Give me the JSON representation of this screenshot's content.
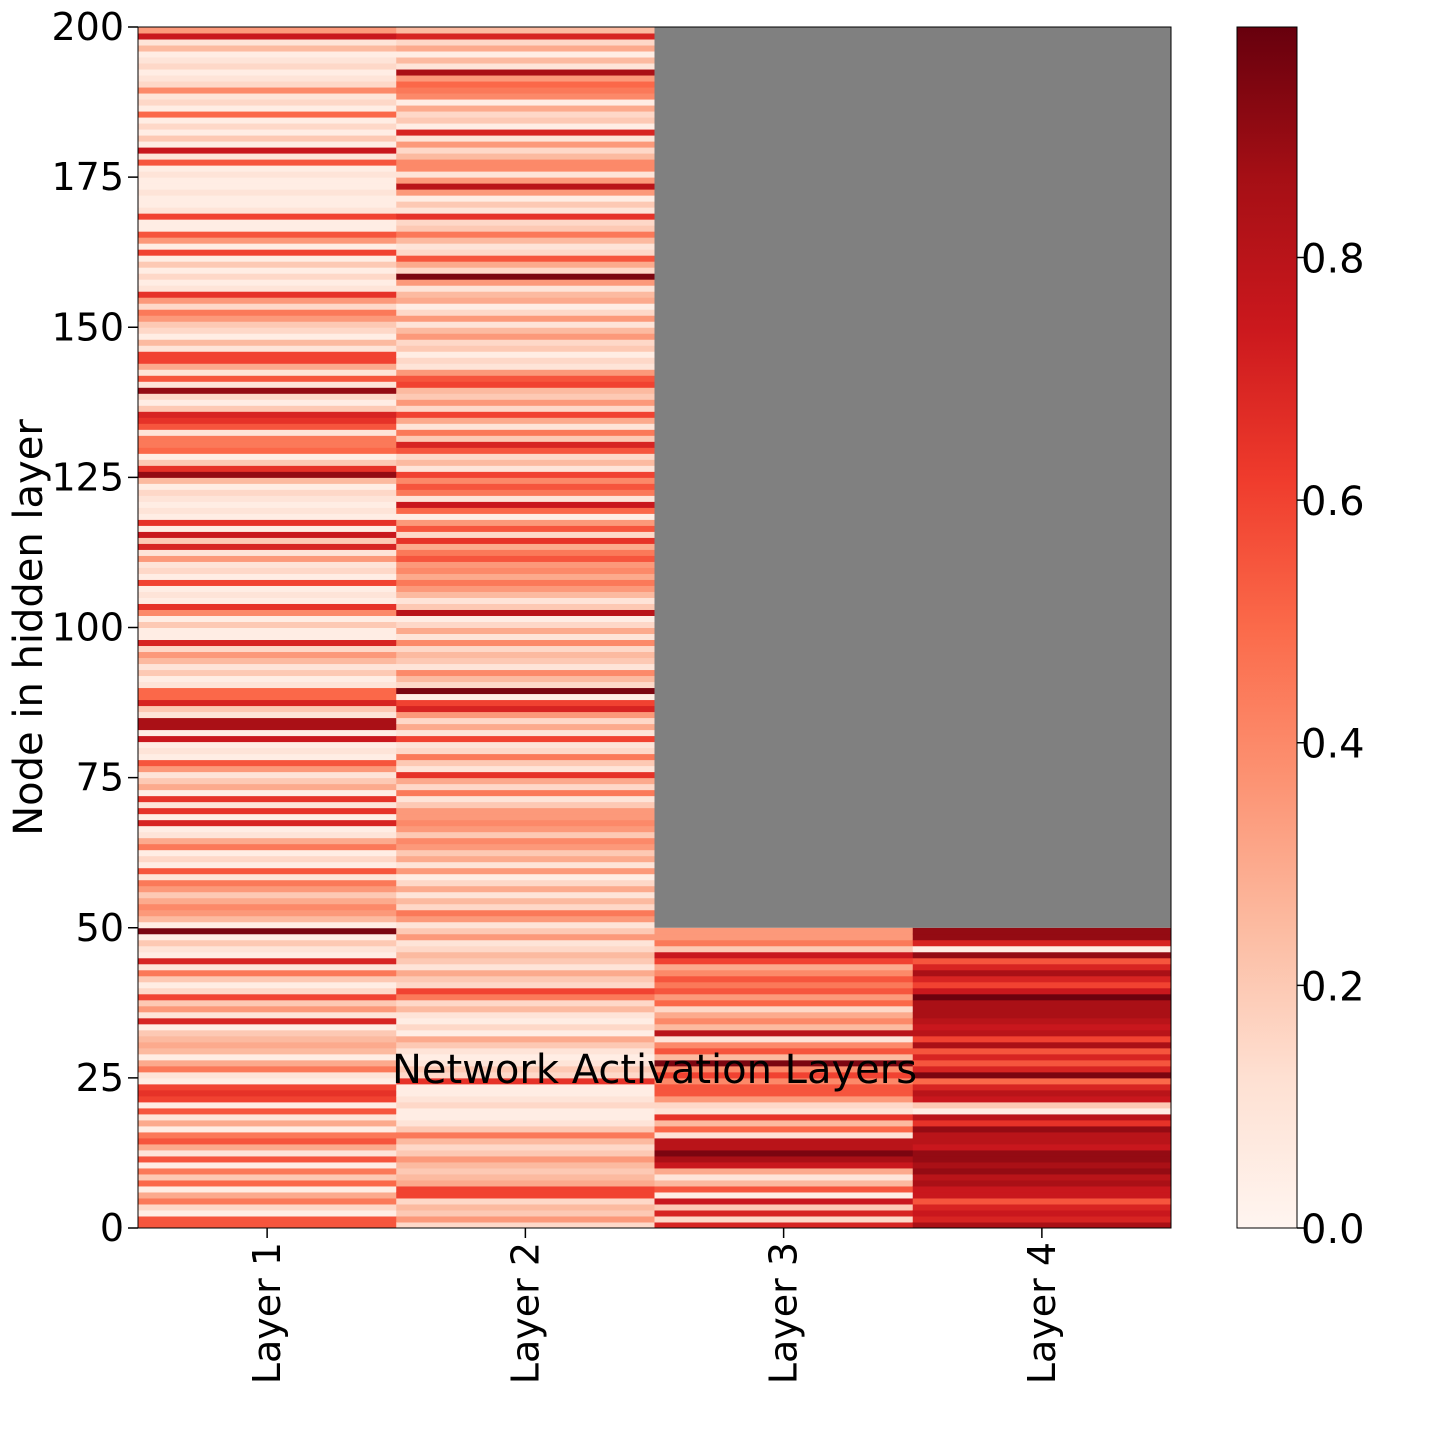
{
  "chart_data": {
    "type": "heatmap",
    "title": "",
    "xlabel": "Network Activation Layers",
    "ylabel": "Node in hidden layer",
    "x_categories": [
      "Layer 1",
      "Layer 2",
      "Layer 3",
      "Layer 4"
    ],
    "ylim": [
      0,
      200
    ],
    "y_ticks": [
      0,
      25,
      50,
      75,
      100,
      125,
      150,
      175,
      200
    ],
    "colormap": "Reds",
    "missing_color": "#808080",
    "colorbar": {
      "range": [
        0.0,
        0.99
      ],
      "ticks": [
        0.0,
        0.2,
        0.4,
        0.6,
        0.8
      ],
      "tick_labels": [
        "0.0",
        "0.2",
        "0.4",
        "0.6",
        "0.8"
      ],
      "placement": "right"
    },
    "grid": false,
    "layers": [
      {
        "name": "Layer 1",
        "nodes": 200,
        "values": [
          0.55,
          0.55,
          0.05,
          0.15,
          0.45,
          0.3,
          0.05,
          0.5,
          0.2,
          0.45,
          0.05,
          0.55,
          0.1,
          0.3,
          0.55,
          0.45,
          0.05,
          0.3,
          0.1,
          0.55,
          0.05,
          0.6,
          0.65,
          0.6,
          0.05,
          0.1,
          0.45,
          0.3,
          0.05,
          0.25,
          0.3,
          0.25,
          0.2,
          0.05,
          0.7,
          0.1,
          0.35,
          0.2,
          0.6,
          0.15,
          0.05,
          0.2,
          0.45,
          0.1,
          0.7,
          0.05,
          0.1,
          0.2,
          0.05,
          0.95,
          0.05,
          0.25,
          0.35,
          0.4,
          0.3,
          0.2,
          0.35,
          0.45,
          0.1,
          0.55,
          0.05,
          0.15,
          0.05,
          0.45,
          0.3,
          0.1,
          0.05,
          0.7,
          0.05,
          0.65,
          0.1,
          0.65,
          0.05,
          0.3,
          0.2,
          0.1,
          0.35,
          0.55,
          0.05,
          0.1,
          0.05,
          0.75,
          0.05,
          0.85,
          0.85,
          0.1,
          0.2,
          0.7,
          0.5,
          0.5,
          0.1,
          0.05,
          0.2,
          0.1,
          0.25,
          0.35,
          0.15,
          0.7,
          0.05,
          0.05,
          0.2,
          0.05,
          0.4,
          0.65,
          0.05,
          0.1,
          0.05,
          0.6,
          0.05,
          0.15,
          0.1,
          0.35,
          0.1,
          0.7,
          0.2,
          0.75,
          0.05,
          0.65,
          0.05,
          0.1,
          0.05,
          0.1,
          0.15,
          0.05,
          0.25,
          0.9,
          0.65,
          0.2,
          0.05,
          0.5,
          0.45,
          0.45,
          0.1,
          0.55,
          0.65,
          0.7,
          0.2,
          0.05,
          0.15,
          0.9,
          0.1,
          0.55,
          0.1,
          0.3,
          0.6,
          0.6,
          0.1,
          0.25,
          0.05,
          0.15,
          0.2,
          0.35,
          0.45,
          0.15,
          0.35,
          0.65,
          0.1,
          0.05,
          0.15,
          0.05,
          0.2,
          0.05,
          0.6,
          0.05,
          0.35,
          0.55,
          0.05,
          0.05,
          0.6,
          0.1,
          0.05,
          0.05,
          0.1,
          0.05,
          0.05,
          0.1,
          0.05,
          0.55,
          0.1,
          0.75,
          0.05,
          0.2,
          0.05,
          0.15,
          0.05,
          0.5,
          0.05,
          0.15,
          0.1,
          0.4,
          0.15,
          0.1,
          0.05,
          0.15,
          0.1,
          0.05,
          0.25,
          0.1,
          0.75,
          0.35
        ]
      },
      {
        "name": "Layer 2",
        "nodes": 200,
        "values": [
          0.15,
          0.35,
          0.2,
          0.25,
          0.15,
          0.6,
          0.6,
          0.3,
          0.25,
          0.2,
          0.25,
          0.35,
          0.2,
          0.15,
          0.25,
          0.45,
          0.2,
          0.1,
          0.05,
          0.05,
          0.15,
          0.1,
          0.05,
          0.05,
          0.65,
          0.15,
          0.2,
          0.1,
          0.05,
          0.1,
          0.2,
          0.3,
          0.05,
          0.15,
          0.05,
          0.1,
          0.25,
          0.15,
          0.45,
          0.6,
          0.15,
          0.2,
          0.3,
          0.1,
          0.2,
          0.25,
          0.15,
          0.1,
          0.35,
          0.2,
          0.1,
          0.35,
          0.45,
          0.15,
          0.25,
          0.1,
          0.3,
          0.15,
          0.05,
          0.35,
          0.1,
          0.3,
          0.2,
          0.35,
          0.4,
          0.2,
          0.35,
          0.4,
          0.35,
          0.35,
          0.2,
          0.1,
          0.45,
          0.15,
          0.3,
          0.65,
          0.1,
          0.2,
          0.45,
          0.15,
          0.1,
          0.6,
          0.1,
          0.3,
          0.15,
          0.35,
          0.7,
          0.6,
          0.05,
          0.95,
          0.15,
          0.25,
          0.4,
          0.1,
          0.2,
          0.25,
          0.15,
          0.4,
          0.1,
          0.3,
          0.15,
          0.05,
          0.8,
          0.2,
          0.1,
          0.25,
          0.35,
          0.45,
          0.3,
          0.4,
          0.35,
          0.55,
          0.45,
          0.3,
          0.65,
          0.15,
          0.55,
          0.35,
          0.05,
          0.5,
          0.75,
          0.1,
          0.45,
          0.55,
          0.4,
          0.6,
          0.1,
          0.25,
          0.15,
          0.55,
          0.7,
          0.2,
          0.45,
          0.1,
          0.3,
          0.6,
          0.15,
          0.35,
          0.2,
          0.25,
          0.6,
          0.55,
          0.35,
          0.1,
          0.15,
          0.05,
          0.2,
          0.15,
          0.35,
          0.25,
          0.1,
          0.35,
          0.15,
          0.05,
          0.3,
          0.25,
          0.1,
          0.35,
          0.95,
          0.15,
          0.3,
          0.55,
          0.15,
          0.1,
          0.25,
          0.45,
          0.2,
          0.15,
          0.65,
          0.1,
          0.2,
          0.05,
          0.35,
          0.8,
          0.35,
          0.1,
          0.4,
          0.4,
          0.25,
          0.15,
          0.35,
          0.1,
          0.7,
          0.05,
          0.2,
          0.15,
          0.3,
          0.05,
          0.4,
          0.45,
          0.5,
          0.35,
          0.85,
          0.1,
          0.25,
          0.05,
          0.3,
          0.15,
          0.7,
          0.25
        ]
      },
      {
        "name": "Layer 3",
        "nodes": 50,
        "values": [
          0.7,
          0.15,
          0.7,
          0.2,
          0.75,
          0.05,
          0.55,
          0.25,
          0.1,
          0.3,
          0.75,
          0.85,
          0.95,
          0.8,
          0.8,
          0.1,
          0.5,
          0.25,
          0.65,
          0.1,
          0.15,
          0.35,
          0.55,
          0.55,
          0.4,
          0.6,
          0.4,
          0.95,
          0.25,
          0.55,
          0.4,
          0.1,
          0.8,
          0.25,
          0.4,
          0.3,
          0.15,
          0.5,
          0.35,
          0.55,
          0.45,
          0.55,
          0.4,
          0.3,
          0.6,
          0.75,
          0.2,
          0.45,
          0.35,
          0.35
        ]
      },
      {
        "name": "Layer 4",
        "nodes": 50,
        "values": [
          0.85,
          0.7,
          0.75,
          0.7,
          0.55,
          0.75,
          0.75,
          0.85,
          0.8,
          0.9,
          0.85,
          0.9,
          0.9,
          0.75,
          0.8,
          0.8,
          0.9,
          0.65,
          0.8,
          0.05,
          0.2,
          0.75,
          0.8,
          0.7,
          0.5,
          0.95,
          0.7,
          0.55,
          0.7,
          0.55,
          0.85,
          0.6,
          0.8,
          0.75,
          0.8,
          0.85,
          0.85,
          0.85,
          0.98,
          0.75,
          0.6,
          0.7,
          0.85,
          0.7,
          0.55,
          0.9,
          0.05,
          0.7,
          0.9,
          0.9
        ]
      }
    ]
  }
}
